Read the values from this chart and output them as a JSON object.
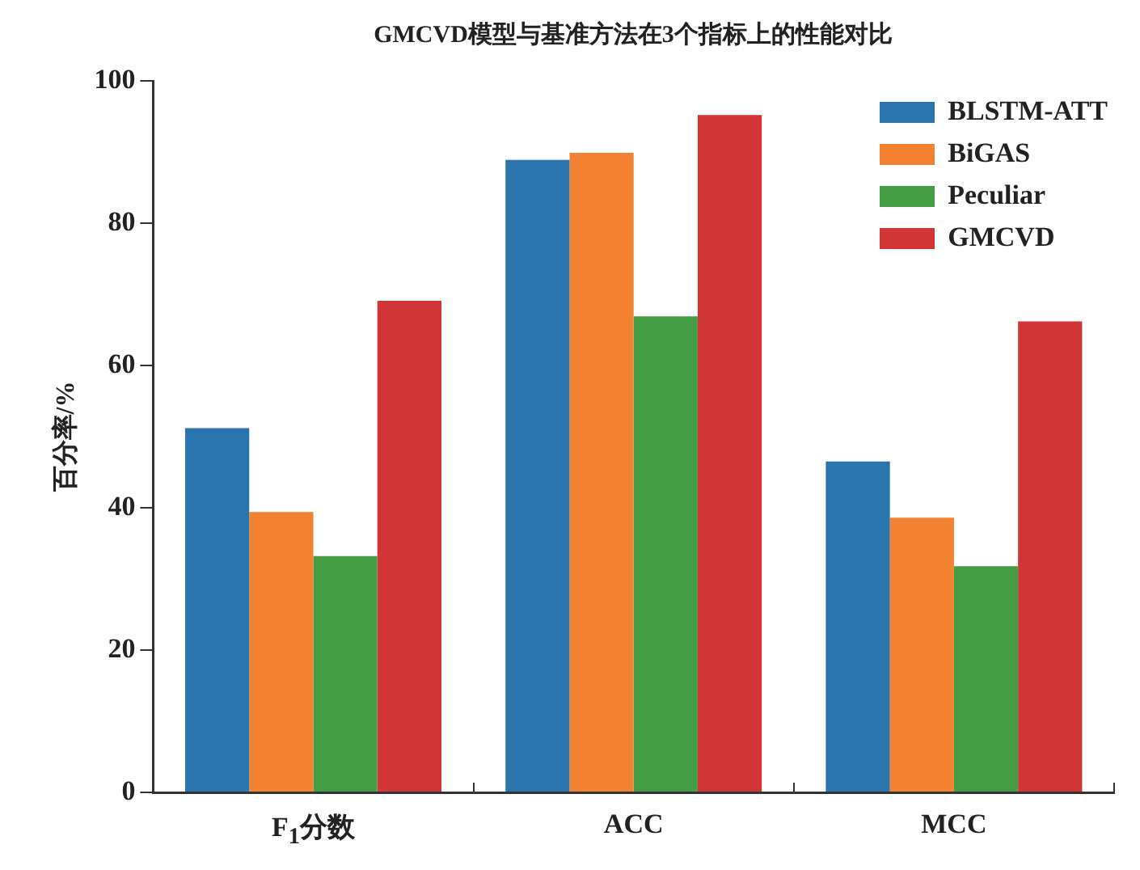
{
  "chart_data": {
    "type": "bar",
    "title": "GMCVD模型与基准方法在3个指标上的性能对比",
    "ylabel": "百分率/%",
    "categories": [
      "F$_{1}$分数",
      "ACC",
      "MCC"
    ],
    "series": [
      {
        "name": "BLSTM-ATT",
        "color": "#2b75ae",
        "values": [
          51.2,
          88.9,
          46.5
        ]
      },
      {
        "name": "BiGAS",
        "color": "#f28131",
        "values": [
          39.4,
          89.9,
          38.6
        ]
      },
      {
        "name": "Peculiar",
        "color": "#449c45",
        "values": [
          33.2,
          66.9,
          31.8
        ]
      },
      {
        "name": "GMCVD",
        "color": "#d13538",
        "values": [
          69.1,
          95.2,
          66.2
        ]
      }
    ],
    "ylim": [
      0,
      100
    ],
    "yticks": [
      0,
      20,
      40,
      60,
      80,
      100
    ],
    "grid": false,
    "legend": "top right"
  }
}
